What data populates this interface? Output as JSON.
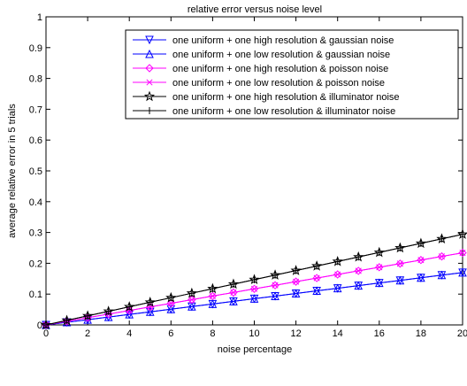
{
  "chart_data": {
    "type": "line",
    "title": "relative error versus noise level",
    "xlabel": "noise percentage",
    "ylabel": "average relative error in 5 trials",
    "xlim": [
      0,
      20
    ],
    "ylim": [
      0,
      1
    ],
    "xticks": [
      0,
      2,
      4,
      6,
      8,
      10,
      12,
      14,
      16,
      18,
      20
    ],
    "yticks": [
      0,
      0.1,
      0.2,
      0.3,
      0.4,
      0.5,
      0.6,
      0.7,
      0.8,
      0.9,
      1
    ],
    "grid": false,
    "legend_position": "top-right",
    "x": [
      0,
      1,
      2,
      3,
      4,
      5,
      6,
      7,
      8,
      9,
      10,
      11,
      12,
      13,
      14,
      15,
      16,
      17,
      18,
      19,
      20
    ],
    "series": [
      {
        "name": "one uniform + one high resolution & gaussian noise",
        "color": "#0000ff",
        "marker": "triangle-down",
        "values": [
          0,
          0.0085,
          0.017,
          0.0255,
          0.034,
          0.0425,
          0.051,
          0.0595,
          0.068,
          0.0765,
          0.085,
          0.0935,
          0.102,
          0.1105,
          0.119,
          0.1275,
          0.136,
          0.1445,
          0.153,
          0.1615,
          0.17
        ]
      },
      {
        "name": "one uniform + one low resolution & gaussian noise",
        "color": "#0000ff",
        "marker": "triangle-up",
        "values": [
          0,
          0.0085,
          0.017,
          0.0255,
          0.034,
          0.0425,
          0.051,
          0.0595,
          0.068,
          0.0765,
          0.085,
          0.0935,
          0.102,
          0.1105,
          0.119,
          0.1275,
          0.136,
          0.1445,
          0.153,
          0.1615,
          0.17
        ]
      },
      {
        "name": "one uniform + one high resolution & poisson noise",
        "color": "#ff00ff",
        "marker": "diamond",
        "values": [
          0,
          0.0117,
          0.0234,
          0.0351,
          0.0468,
          0.0585,
          0.0702,
          0.0819,
          0.0936,
          0.1053,
          0.117,
          0.1287,
          0.1404,
          0.1521,
          0.1638,
          0.1755,
          0.1872,
          0.1989,
          0.2106,
          0.2223,
          0.234
        ]
      },
      {
        "name": "one uniform + one low resolution & poisson noise",
        "color": "#ff00ff",
        "marker": "x",
        "values": [
          0,
          0.0117,
          0.0234,
          0.0351,
          0.0468,
          0.0585,
          0.0702,
          0.0819,
          0.0936,
          0.1053,
          0.117,
          0.1287,
          0.1404,
          0.1521,
          0.1638,
          0.1755,
          0.1872,
          0.1989,
          0.2106,
          0.2223,
          0.234
        ]
      },
      {
        "name": "one uniform + one high resolution & illuminator noise",
        "color": "#000000",
        "marker": "star",
        "values": [
          0,
          0.0147,
          0.0294,
          0.0441,
          0.0588,
          0.0735,
          0.0882,
          0.1029,
          0.1176,
          0.1323,
          0.147,
          0.1617,
          0.1764,
          0.1911,
          0.2058,
          0.2205,
          0.2352,
          0.2499,
          0.2646,
          0.2793,
          0.294
        ]
      },
      {
        "name": "one uniform + one low resolution & illuminator noise",
        "color": "#000000",
        "marker": "plus",
        "values": [
          0,
          0.0147,
          0.0294,
          0.0441,
          0.0588,
          0.0735,
          0.0882,
          0.1029,
          0.1176,
          0.1323,
          0.147,
          0.1617,
          0.1764,
          0.1911,
          0.2058,
          0.2205,
          0.2352,
          0.2499,
          0.2646,
          0.2793,
          0.294
        ]
      }
    ]
  }
}
